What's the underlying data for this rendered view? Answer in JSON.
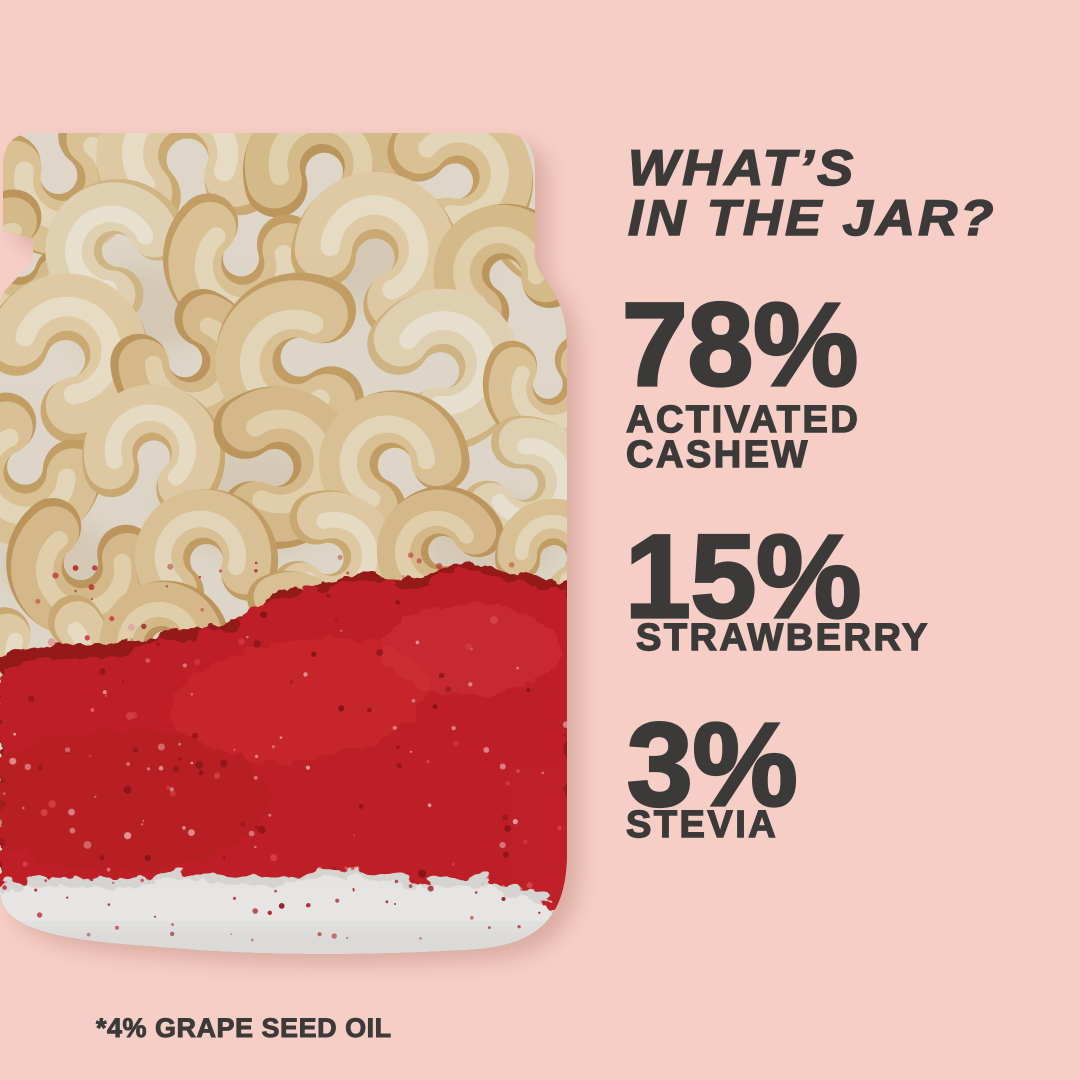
{
  "colors": {
    "background": "#F6CEC6",
    "ink": "#3B3A39",
    "strawberry_red": "#CE2429",
    "cashew_cream": "#EAD0A0",
    "sugar_white": "#F7F6F4"
  },
  "title": {
    "line1": "WHAT’S",
    "line2": "IN THE JAR?"
  },
  "ingredients": [
    {
      "value": 78,
      "percent": "78%",
      "label_lines": [
        "ACTIVATED",
        "CASHEW"
      ]
    },
    {
      "value": 15,
      "percent": "15%",
      "label_lines": [
        "STRAWBERRY"
      ]
    },
    {
      "value": 3,
      "percent": "3%",
      "label_lines": [
        "STEVIA"
      ]
    }
  ],
  "footnote": {
    "value": 4,
    "text": "*4% GRAPE SEED OIL"
  },
  "jar_photo": {
    "contents": [
      "cashews",
      "freeze-dried strawberry powder",
      "sugar layer"
    ]
  }
}
